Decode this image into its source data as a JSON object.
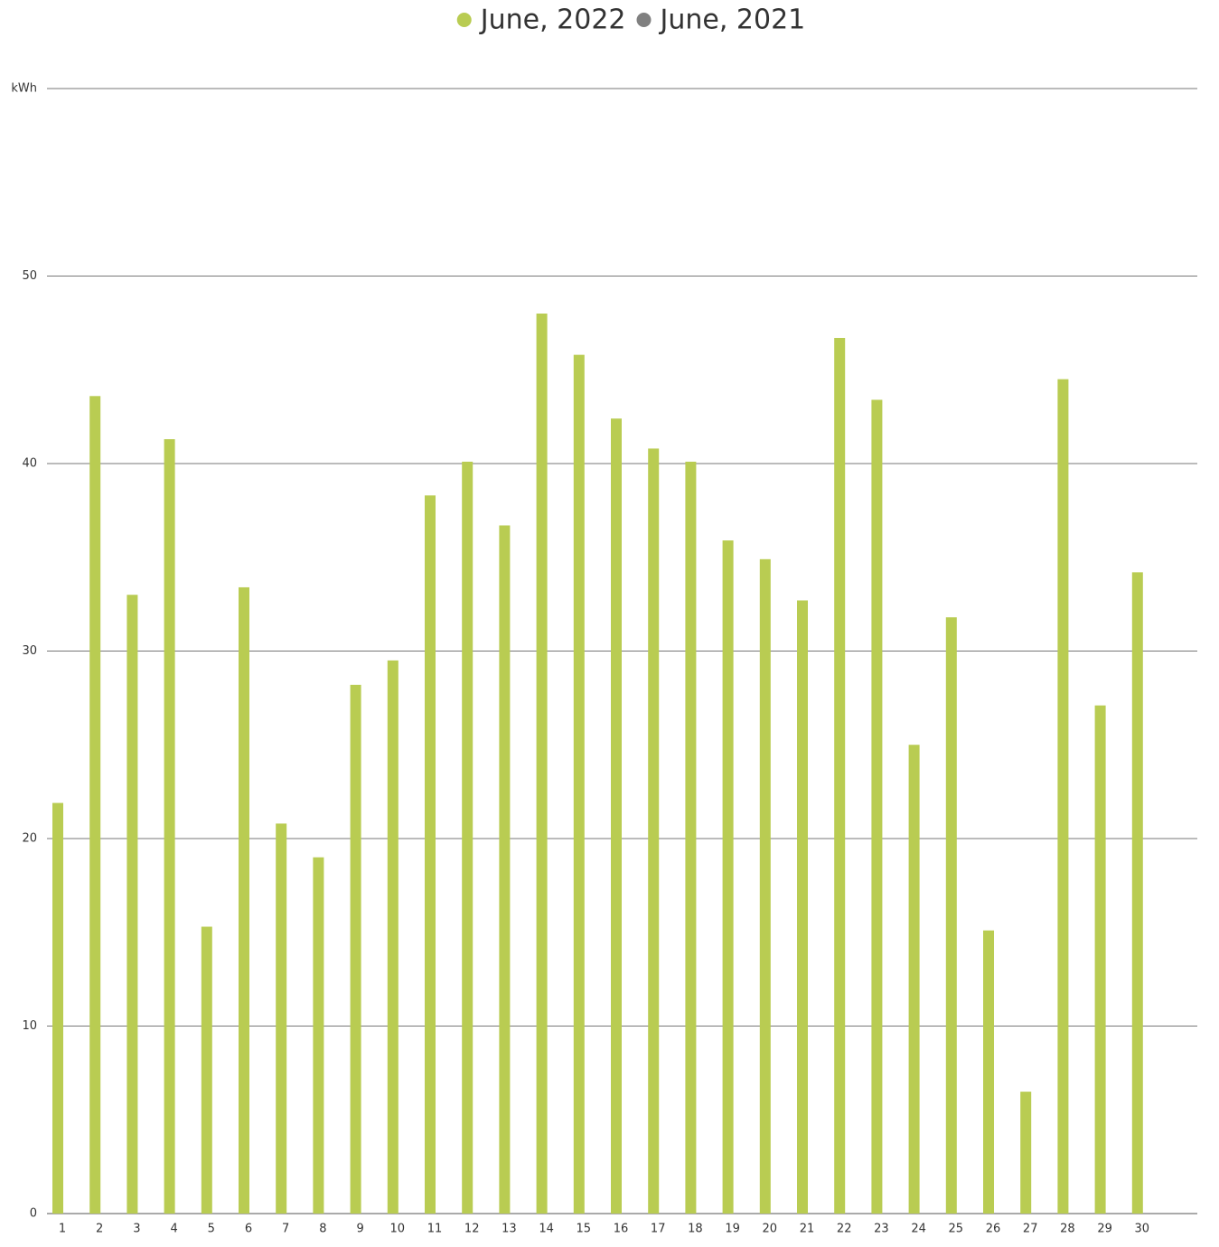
{
  "chart_data": {
    "type": "bar",
    "categories": [
      "1",
      "2",
      "3",
      "4",
      "5",
      "6",
      "7",
      "8",
      "9",
      "10",
      "11",
      "12",
      "13",
      "14",
      "15",
      "16",
      "17",
      "18",
      "19",
      "20",
      "21",
      "22",
      "23",
      "24",
      "25",
      "26",
      "27",
      "28",
      "29",
      "30"
    ],
    "series": [
      {
        "name": "June, 2022",
        "color": "#b9cc52",
        "values": [
          21.9,
          43.6,
          33.0,
          41.3,
          15.3,
          33.4,
          20.8,
          19.0,
          28.2,
          29.5,
          38.3,
          40.1,
          36.7,
          48.0,
          45.8,
          42.4,
          40.8,
          40.1,
          35.9,
          34.9,
          32.7,
          46.7,
          43.4,
          25.0,
          31.8,
          15.1,
          6.5,
          44.5,
          27.1,
          34.2
        ]
      },
      {
        "name": "June, 2021",
        "color": "#808080",
        "values": [
          null,
          null,
          null,
          null,
          null,
          null,
          null,
          null,
          null,
          null,
          null,
          null,
          null,
          null,
          null,
          null,
          null,
          null,
          null,
          null,
          null,
          null,
          null,
          null,
          null,
          null,
          null,
          null,
          null,
          null
        ]
      }
    ],
    "ylim": [
      0,
      60
    ],
    "yticks": [
      0,
      10,
      20,
      30,
      40,
      50,
      {
        "value": 60,
        "label": "kWh"
      }
    ],
    "grid": true,
    "legend": "top"
  }
}
